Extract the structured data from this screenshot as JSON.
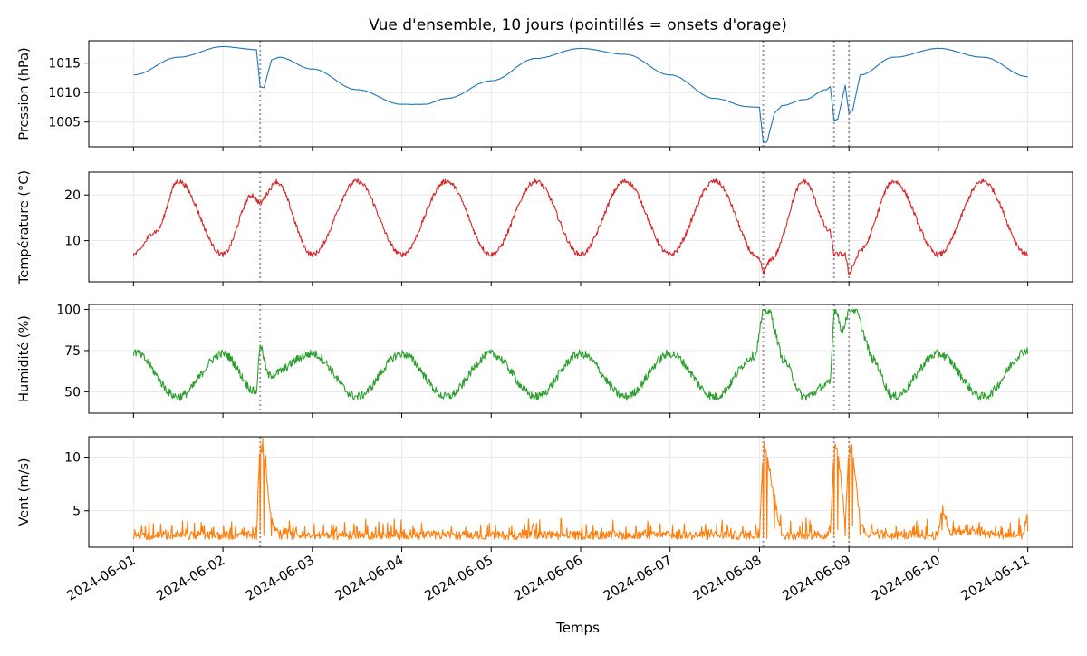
{
  "figure": {
    "title": "Vue d'ensemble, 10 jours (pointillés = onsets d'orage)",
    "xlabel": "Temps"
  },
  "chart_data": {
    "type": "line",
    "x_range": [
      "2024-06-01",
      "2024-06-11"
    ],
    "x_ticks": [
      "2024-06-01",
      "2024-06-02",
      "2024-06-03",
      "2024-06-04",
      "2024-06-05",
      "2024-06-06",
      "2024-06-07",
      "2024-06-08",
      "2024-06-09",
      "2024-06-10",
      "2024-06-11"
    ],
    "storm_onsets": [
      "2024-06-02T10:00",
      "2024-06-08T01:00",
      "2024-06-08T20:00",
      "2024-06-09T00:00"
    ],
    "grid": true,
    "panels": [
      {
        "ylabel": "Pression (hPa)",
        "color": "#1f77b4",
        "ylim": [
          1000.8,
          1018.8
        ],
        "yticks": [
          1005,
          1010,
          1015
        ],
        "keypoints": [
          [
            "2024-06-01T00:00",
            1013.0
          ],
          [
            "2024-06-01T12:00",
            1016.0
          ],
          [
            "2024-06-02T00:00",
            1017.8
          ],
          [
            "2024-06-02T09:00",
            1017.3
          ],
          [
            "2024-06-02T10:00",
            1011.0
          ],
          [
            "2024-06-02T11:00",
            1010.8
          ],
          [
            "2024-06-02T13:00",
            1015.5
          ],
          [
            "2024-06-02T15:00",
            1016.0
          ],
          [
            "2024-06-03T00:00",
            1014.0
          ],
          [
            "2024-06-03T12:00",
            1010.5
          ],
          [
            "2024-06-04T00:00",
            1008.0
          ],
          [
            "2024-06-04T06:00",
            1008.0
          ],
          [
            "2024-06-04T12:00",
            1009.0
          ],
          [
            "2024-06-05T00:00",
            1012.0
          ],
          [
            "2024-06-05T12:00",
            1015.8
          ],
          [
            "2024-06-06T00:00",
            1017.5
          ],
          [
            "2024-06-06T12:00",
            1016.5
          ],
          [
            "2024-06-07T00:00",
            1013.0
          ],
          [
            "2024-06-07T12:00",
            1009.0
          ],
          [
            "2024-06-07T21:00",
            1007.6
          ],
          [
            "2024-06-08T00:00",
            1007.5
          ],
          [
            "2024-06-08T01:00",
            1001.5
          ],
          [
            "2024-06-08T02:00",
            1001.6
          ],
          [
            "2024-06-08T04:00",
            1006.5
          ],
          [
            "2024-06-08T06:00",
            1007.8
          ],
          [
            "2024-06-08T12:00",
            1008.8
          ],
          [
            "2024-06-08T18:00",
            1010.5
          ],
          [
            "2024-06-08T19:00",
            1011.0
          ],
          [
            "2024-06-08T20:00",
            1005.3
          ],
          [
            "2024-06-08T21:00",
            1005.5
          ],
          [
            "2024-06-08T23:00",
            1011.2
          ],
          [
            "2024-06-09T00:00",
            1006.5
          ],
          [
            "2024-06-09T01:00",
            1007.0
          ],
          [
            "2024-06-09T03:00",
            1013.0
          ],
          [
            "2024-06-09T12:00",
            1016.0
          ],
          [
            "2024-06-10T00:00",
            1017.5
          ],
          [
            "2024-06-10T12:00",
            1016.0
          ],
          [
            "2024-06-11T00:00",
            1012.7
          ]
        ]
      },
      {
        "ylabel": "Température (°C)",
        "color": "#d62728",
        "ylim": [
          1.0,
          25.0
        ],
        "yticks": [
          10,
          20
        ],
        "keypoints": [
          [
            "2024-06-01T00:00",
            7.0
          ],
          [
            "2024-06-01T06:00",
            12.0
          ],
          [
            "2024-06-01T12:00",
            23.0
          ],
          [
            "2024-06-02T00:00",
            7.0
          ],
          [
            "2024-06-02T08:00",
            20.0
          ],
          [
            "2024-06-02T10:00",
            18.0
          ],
          [
            "2024-06-02T14:00",
            23.0
          ],
          [
            "2024-06-03T00:00",
            7.0
          ],
          [
            "2024-06-03T12:00",
            23.0
          ],
          [
            "2024-06-04T00:00",
            7.0
          ],
          [
            "2024-06-04T12:00",
            23.0
          ],
          [
            "2024-06-05T00:00",
            7.0
          ],
          [
            "2024-06-05T12:00",
            23.0
          ],
          [
            "2024-06-06T00:00",
            7.0
          ],
          [
            "2024-06-06T12:00",
            23.0
          ],
          [
            "2024-06-07T00:00",
            7.0
          ],
          [
            "2024-06-07T12:00",
            23.0
          ],
          [
            "2024-06-08T00:00",
            6.0
          ],
          [
            "2024-06-08T01:00",
            3.0
          ],
          [
            "2024-06-08T03:00",
            6.0
          ],
          [
            "2024-06-08T12:00",
            23.0
          ],
          [
            "2024-06-08T19:00",
            12.0
          ],
          [
            "2024-06-08T20:00",
            7.0
          ],
          [
            "2024-06-08T23:00",
            7.0
          ],
          [
            "2024-06-09T00:00",
            2.5
          ],
          [
            "2024-06-09T03:00",
            8.0
          ],
          [
            "2024-06-09T12:00",
            23.0
          ],
          [
            "2024-06-10T00:00",
            7.0
          ],
          [
            "2024-06-10T12:00",
            23.0
          ],
          [
            "2024-06-11T00:00",
            7.0
          ]
        ]
      },
      {
        "ylabel": "Humidité (%)",
        "color": "#2ca02c",
        "ylim": [
          37,
          103
        ],
        "yticks": [
          50,
          75,
          100
        ],
        "keypoints": [
          [
            "2024-06-01T00:00",
            74
          ],
          [
            "2024-06-01T12:00",
            47
          ],
          [
            "2024-06-02T00:00",
            73
          ],
          [
            "2024-06-02T09:00",
            50
          ],
          [
            "2024-06-02T10:00",
            80
          ],
          [
            "2024-06-02T12:00",
            60
          ],
          [
            "2024-06-03T00:00",
            73
          ],
          [
            "2024-06-03T12:00",
            47
          ],
          [
            "2024-06-04T00:00",
            73
          ],
          [
            "2024-06-04T12:00",
            47
          ],
          [
            "2024-06-05T00:00",
            73
          ],
          [
            "2024-06-05T12:00",
            47
          ],
          [
            "2024-06-06T00:00",
            73
          ],
          [
            "2024-06-06T12:00",
            47
          ],
          [
            "2024-06-07T00:00",
            73
          ],
          [
            "2024-06-07T12:00",
            47
          ],
          [
            "2024-06-07T23:00",
            72
          ],
          [
            "2024-06-08T01:00",
            100
          ],
          [
            "2024-06-08T03:00",
            98
          ],
          [
            "2024-06-08T06:00",
            70
          ],
          [
            "2024-06-08T12:00",
            47
          ],
          [
            "2024-06-08T19:00",
            55
          ],
          [
            "2024-06-08T20:00",
            100
          ],
          [
            "2024-06-08T21:00",
            98
          ],
          [
            "2024-06-08T22:00",
            85
          ],
          [
            "2024-06-09T00:00",
            100
          ],
          [
            "2024-06-09T02:00",
            100
          ],
          [
            "2024-06-09T06:00",
            70
          ],
          [
            "2024-06-09T12:00",
            47
          ],
          [
            "2024-06-10T00:00",
            73
          ],
          [
            "2024-06-10T12:00",
            47
          ],
          [
            "2024-06-11T00:00",
            75
          ]
        ]
      },
      {
        "ylabel": "Vent (m/s)",
        "color": "#ff7f0e",
        "ylim": [
          1.6,
          11.9
        ],
        "yticks": [
          5,
          10
        ],
        "baseline": 2.7,
        "keypoints": [
          [
            "2024-06-02T09:00",
            2.7
          ],
          [
            "2024-06-02T10:00",
            11.0
          ],
          [
            "2024-06-02T11:00",
            10.5
          ],
          [
            "2024-06-02T13:00",
            4.0
          ],
          [
            "2024-06-02T15:00",
            2.7
          ],
          [
            "2024-06-08T00:00",
            2.7
          ],
          [
            "2024-06-08T01:00",
            11.2
          ],
          [
            "2024-06-08T02:00",
            10.5
          ],
          [
            "2024-06-08T04:00",
            6.0
          ],
          [
            "2024-06-08T06:00",
            2.7
          ],
          [
            "2024-06-08T19:00",
            2.7
          ],
          [
            "2024-06-08T20:00",
            11.2
          ],
          [
            "2024-06-08T21:00",
            10.8
          ],
          [
            "2024-06-08T23:00",
            4.0
          ],
          [
            "2024-06-09T00:00",
            10.8
          ],
          [
            "2024-06-09T01:00",
            10.5
          ],
          [
            "2024-06-09T03:00",
            4.0
          ],
          [
            "2024-06-09T05:00",
            2.7
          ],
          [
            "2024-06-10T00:00",
            2.7
          ],
          [
            "2024-06-10T01:00",
            5.5
          ],
          [
            "2024-06-10T03:00",
            3.0
          ],
          [
            "2024-06-10T23:00",
            2.7
          ],
          [
            "2024-06-11T00:00",
            4.8
          ]
        ]
      }
    ]
  }
}
